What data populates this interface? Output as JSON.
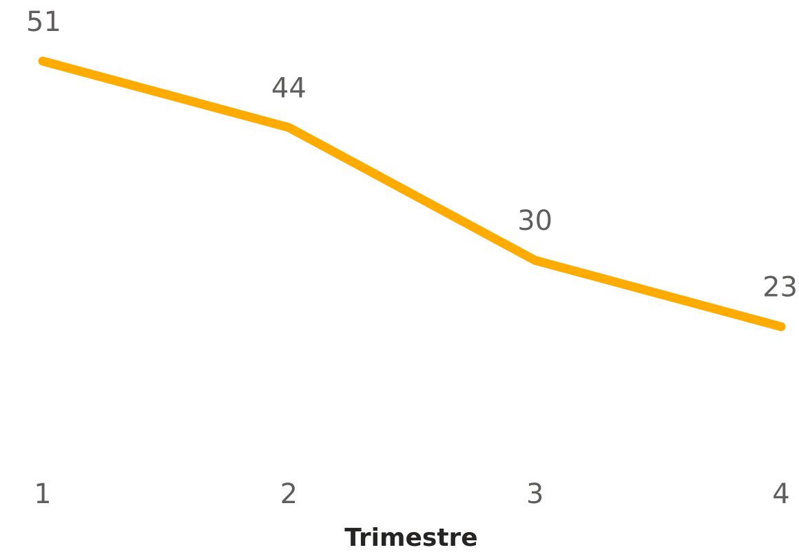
{
  "chart_data": {
    "type": "line",
    "title": "",
    "xlabel": "Trimestre",
    "ylabel": "",
    "categories": [
      "1",
      "2",
      "3",
      "4"
    ],
    "series": [
      {
        "values": [
          51,
          44,
          30,
          23
        ],
        "color": "#ffab00"
      }
    ],
    "data_labels": true,
    "grid": false,
    "legend": "none"
  }
}
